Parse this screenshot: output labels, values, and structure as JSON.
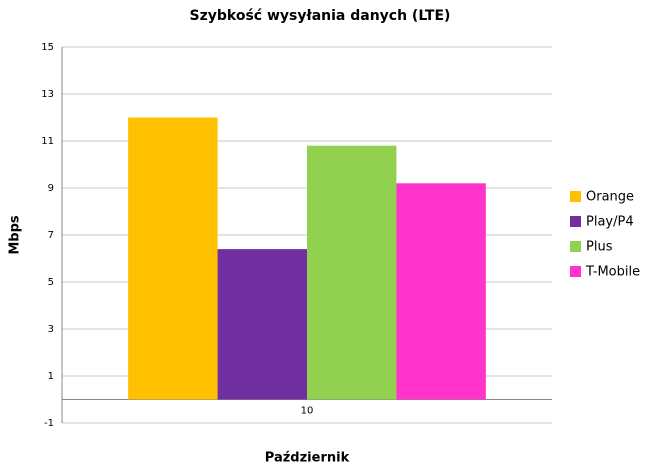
{
  "chart_data": {
    "type": "bar",
    "title": "Szybkość wysyłania danych (LTE)",
    "x_label": "Październik",
    "y_label": "Mbps",
    "categories": [
      "10"
    ],
    "series": [
      {
        "name": "Orange",
        "color": "#ffc000",
        "values": [
          12.0
        ]
      },
      {
        "name": "Play/P4",
        "color": "#7030a0",
        "values": [
          6.4
        ]
      },
      {
        "name": "Plus",
        "color": "#92d050",
        "values": [
          10.8
        ]
      },
      {
        "name": "T-Mobile",
        "color": "#ff33cc",
        "values": [
          9.2
        ]
      }
    ],
    "ylim": [
      -1,
      15
    ],
    "yticks": [
      -1,
      1,
      3,
      5,
      7,
      9,
      11,
      13,
      15
    ],
    "grid": true,
    "legend": "right"
  }
}
